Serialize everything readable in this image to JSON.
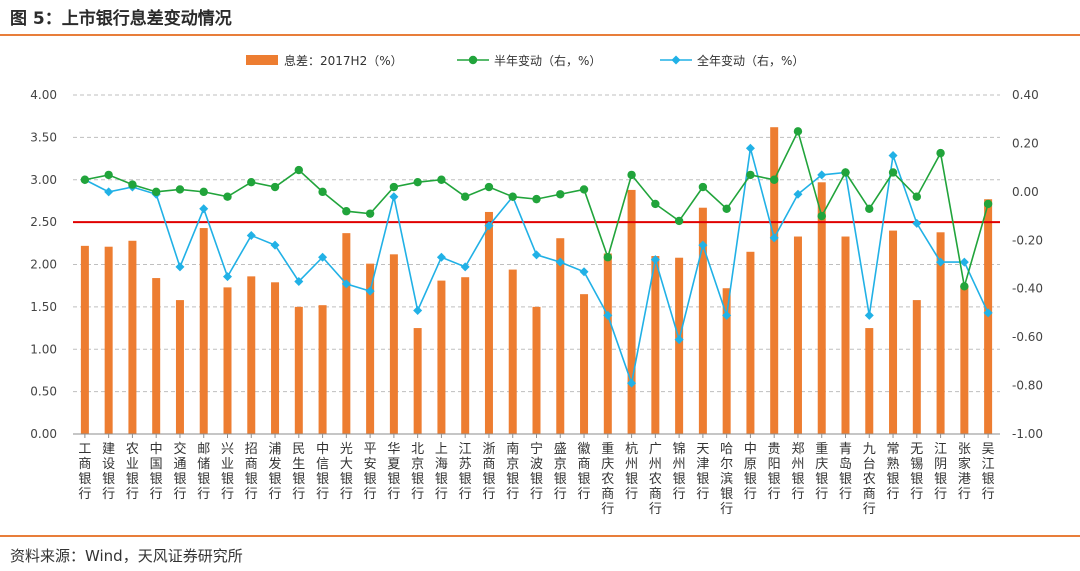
{
  "title": "图 5：上市银行息差变动情况",
  "source": "资料来源：Wind，天风证券研究所",
  "colors": {
    "bar": "#ed7d31",
    "half": "#21a43b",
    "full": "#21b1e6",
    "ref": "#e00000",
    "accent": "#e87e3a"
  },
  "chart_data": {
    "type": "bar",
    "categories": [
      "工商银行",
      "建设银行",
      "农业银行",
      "中国银行",
      "交通银行",
      "邮储银行",
      "兴业银行",
      "招商银行",
      "浦发银行",
      "民生银行",
      "中信银行",
      "光大银行",
      "平安银行",
      "华夏银行",
      "北京银行",
      "上海银行",
      "江苏银行",
      "浙商银行",
      "南京银行",
      "宁波银行",
      "盛京银行",
      "徽商银行",
      "重庆农商行",
      "杭州银行",
      "广州农商行",
      "锦州银行",
      "天津银行",
      "哈尔滨银行",
      "中原银行",
      "贵阳银行",
      "郑州银行",
      "重庆银行",
      "青岛银行",
      "九台农商行",
      "常熟银行",
      "无锡银行",
      "江阴银行",
      "张家港行",
      "吴江银行"
    ],
    "series": [
      {
        "name": "息差：2017H2（%）",
        "type": "bar",
        "axis": "left",
        "values": [
          2.22,
          2.21,
          2.28,
          1.84,
          1.58,
          2.43,
          1.73,
          1.86,
          1.79,
          1.5,
          1.52,
          2.37,
          2.01,
          2.12,
          1.25,
          1.81,
          1.85,
          2.62,
          1.94,
          1.5,
          2.31,
          1.65,
          2.13,
          2.88,
          2.1,
          2.08,
          2.67,
          1.72,
          2.15,
          3.62,
          2.33,
          2.97,
          2.33,
          1.25,
          2.4,
          1.58,
          2.38,
          1.75,
          2.77
        ]
      },
      {
        "name": "半年变动（右，%）",
        "type": "line",
        "axis": "right",
        "values": [
          0.05,
          0.07,
          0.03,
          0.0,
          0.01,
          0.0,
          -0.02,
          0.04,
          0.02,
          0.09,
          0.0,
          -0.08,
          -0.09,
          0.02,
          0.04,
          0.05,
          -0.02,
          0.02,
          -0.02,
          -0.03,
          -0.01,
          0.01,
          -0.27,
          0.07,
          -0.05,
          -0.12,
          0.02,
          -0.07,
          0.07,
          0.05,
          0.25,
          -0.1,
          0.08,
          -0.07,
          0.08,
          -0.02,
          0.16,
          -0.39,
          -0.05
        ]
      },
      {
        "name": "全年变动（右，%）",
        "type": "line",
        "axis": "right",
        "values": [
          0.05,
          0.0,
          0.02,
          -0.01,
          -0.31,
          -0.07,
          -0.35,
          -0.18,
          -0.22,
          -0.37,
          -0.27,
          -0.38,
          -0.41,
          -0.02,
          -0.49,
          -0.27,
          -0.31,
          -0.14,
          -0.02,
          -0.26,
          -0.29,
          -0.33,
          -0.51,
          -0.79,
          -0.28,
          -0.61,
          -0.22,
          -0.51,
          0.18,
          -0.19,
          -0.01,
          0.07,
          0.08,
          -0.51,
          0.15,
          -0.13,
          -0.29,
          -0.29,
          -0.5
        ]
      }
    ],
    "reference_line": {
      "axis": "left",
      "value": 2.5
    },
    "y_left": {
      "min": 0,
      "max": 4,
      "ticks": [
        "0.00",
        "0.50",
        "1.00",
        "1.50",
        "2.00",
        "2.50",
        "3.00",
        "3.50",
        "4.00"
      ]
    },
    "y_right": {
      "min": -1,
      "max": 0.4,
      "ticks": [
        "-1.00",
        "-0.80",
        "-0.60",
        "-0.40",
        "-0.20",
        "0.00",
        "0.20",
        "0.40"
      ]
    },
    "legend_position": "top",
    "grid": "dashed horizontal"
  }
}
